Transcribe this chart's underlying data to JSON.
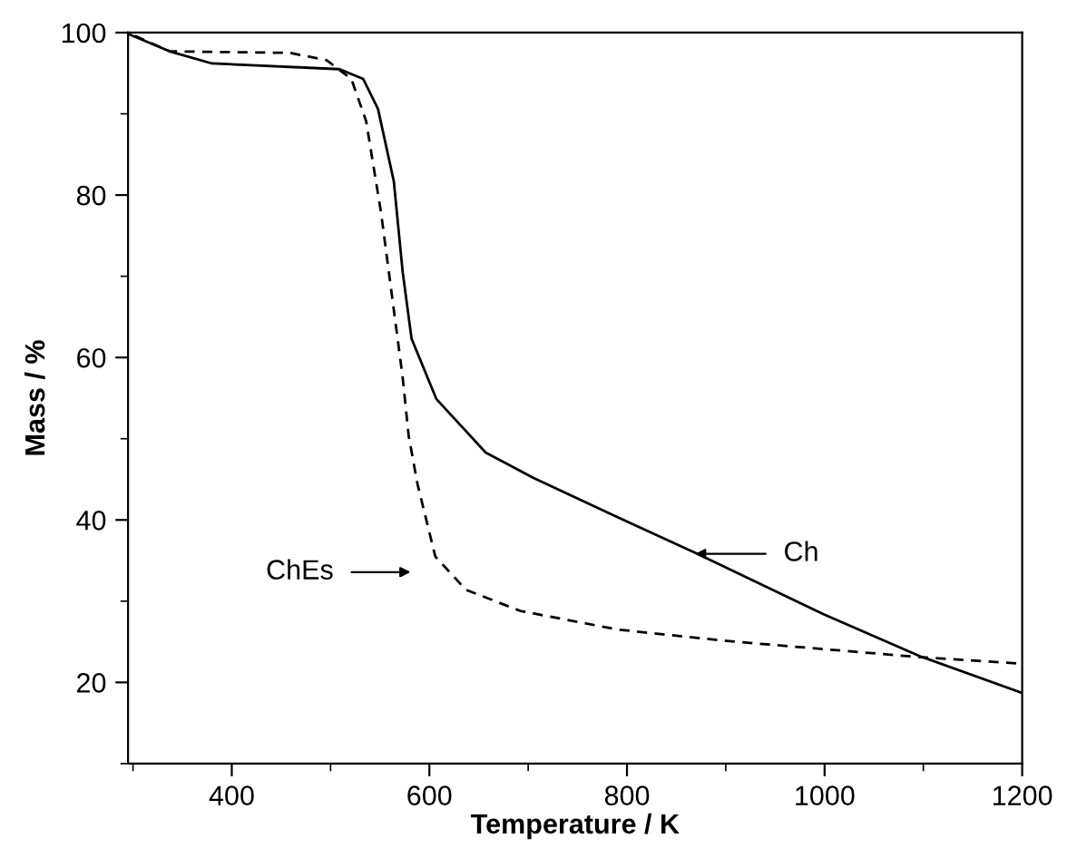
{
  "chart_data": {
    "type": "line",
    "xlabel": "Temperature / K",
    "ylabel": "Mass / %",
    "xlim": [
      295,
      1200
    ],
    "ylim": [
      10,
      100
    ],
    "xticks": [
      400,
      600,
      800,
      1000,
      1200
    ],
    "yticks": [
      20,
      40,
      60,
      80,
      100
    ],
    "grid": false,
    "legend": false,
    "marker": "none",
    "series": [
      {
        "color": "#000000",
        "line_style": "solid",
        "x": [
          296,
          337,
          380,
          509,
          533,
          548,
          564,
          573,
          582,
          607,
          657,
          705,
          791,
          870,
          999,
          1097,
          1200
        ],
        "values": [
          99.8,
          97.7,
          96.2,
          95.5,
          94.3,
          90.6,
          81.7,
          70.5,
          62.3,
          54.9,
          48.3,
          45.2,
          40.3,
          35.9,
          28.4,
          23.2,
          18.7
        ]
      },
      {
        "color": "#000000",
        "line_style": "dashed",
        "x": [
          302,
          337,
          459,
          496,
          521,
          536,
          551,
          567,
          573,
          579,
          588,
          606,
          637,
          692,
          791,
          901,
          1097,
          1200
        ],
        "values": [
          99.6,
          97.7,
          97.5,
          96.6,
          94.3,
          89.1,
          77.9,
          63.1,
          57.5,
          50.4,
          44.4,
          35.5,
          31.4,
          28.8,
          26.5,
          25.1,
          23.1,
          22.3
        ]
      }
    ],
    "annotations": [
      "ChEs",
      "Ch"
    ]
  }
}
